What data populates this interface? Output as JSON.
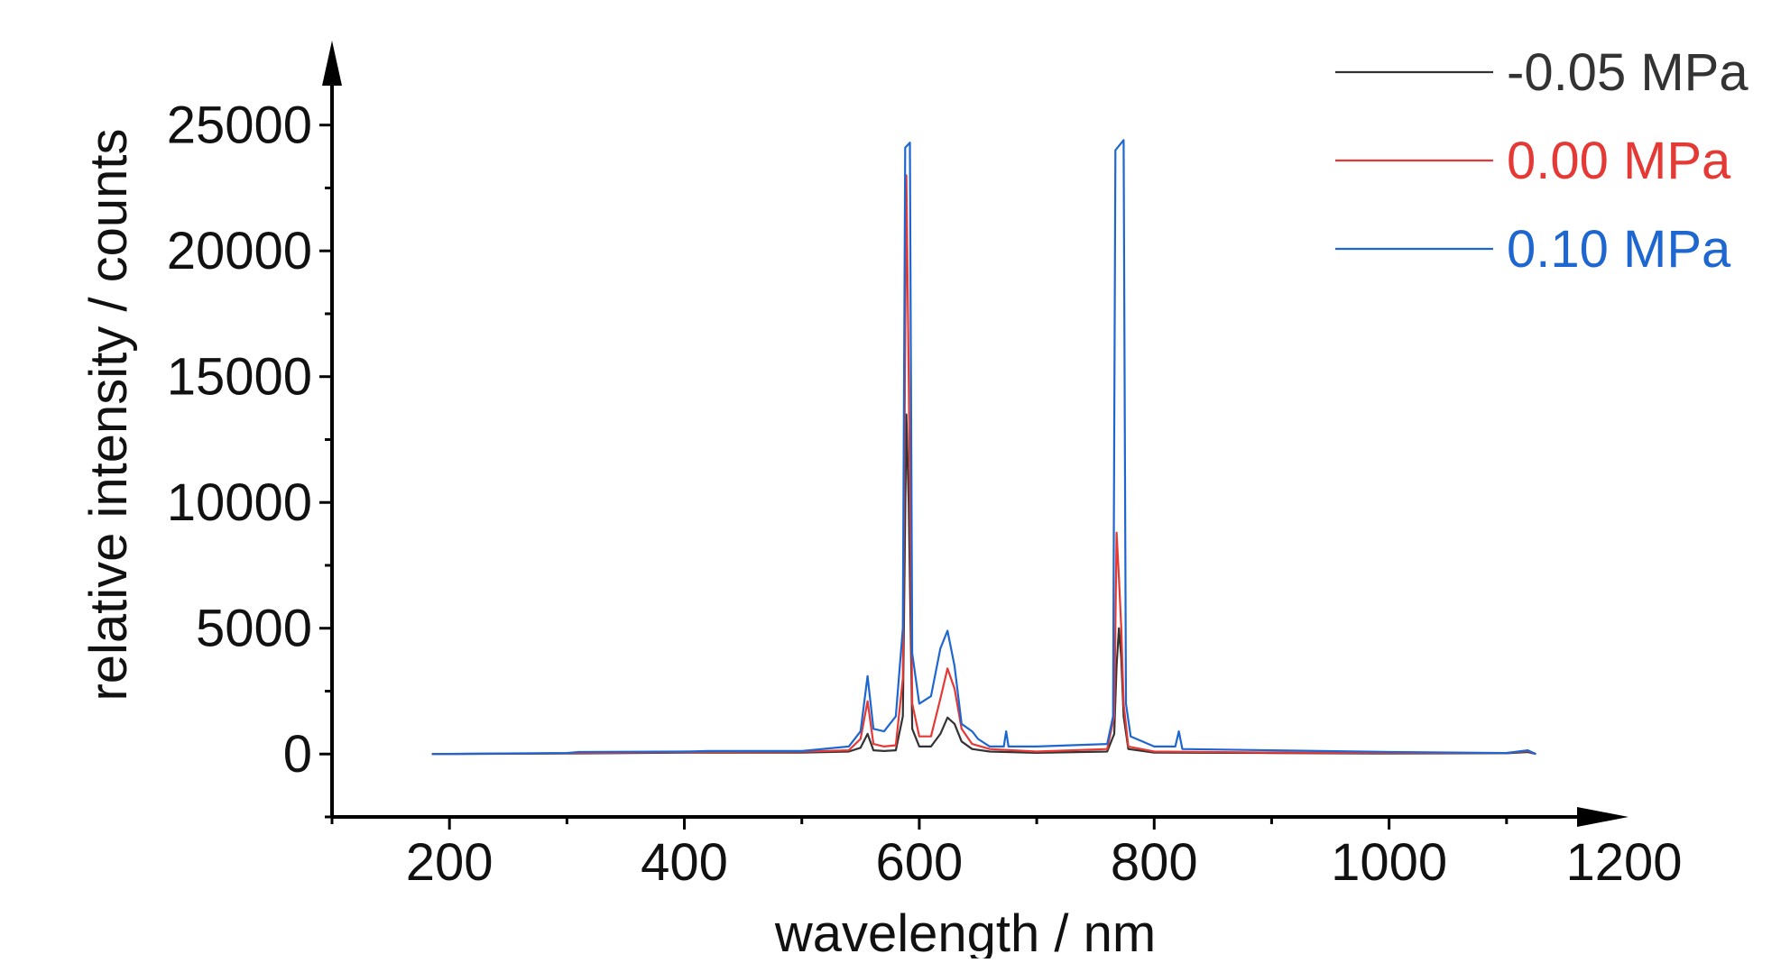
{
  "chart_data": {
    "type": "line",
    "title": "",
    "xlabel": "wavelength / nm",
    "ylabel": "relative intensity / counts",
    "xlim": [
      100,
      1200
    ],
    "ylim": [
      -2500,
      28000
    ],
    "x_ticks": [
      200,
      400,
      600,
      800,
      1000,
      1200
    ],
    "y_ticks": [
      0,
      5000,
      10000,
      15000,
      20000,
      25000
    ],
    "grid": false,
    "legend": {
      "position": "top-right"
    },
    "series": [
      {
        "name": "-0.05 MPa",
        "color": "#333333",
        "points": [
          [
            185,
            0
          ],
          [
            300,
            20
          ],
          [
            400,
            60
          ],
          [
            500,
            60
          ],
          [
            540,
            100
          ],
          [
            550,
            250
          ],
          [
            556,
            800
          ],
          [
            561,
            150
          ],
          [
            570,
            120
          ],
          [
            580,
            150
          ],
          [
            586,
            1500
          ],
          [
            589,
            13500
          ],
          [
            591,
            10000
          ],
          [
            594,
            1000
          ],
          [
            600,
            300
          ],
          [
            610,
            300
          ],
          [
            618,
            800
          ],
          [
            624,
            1450
          ],
          [
            630,
            1200
          ],
          [
            636,
            500
          ],
          [
            645,
            200
          ],
          [
            660,
            100
          ],
          [
            700,
            50
          ],
          [
            760,
            100
          ],
          [
            766,
            800
          ],
          [
            768,
            3500
          ],
          [
            770,
            5000
          ],
          [
            772,
            3800
          ],
          [
            774,
            1500
          ],
          [
            778,
            200
          ],
          [
            800,
            60
          ],
          [
            900,
            40
          ],
          [
            1000,
            20
          ],
          [
            1100,
            30
          ],
          [
            1118,
            80
          ],
          [
            1125,
            0
          ]
        ]
      },
      {
        "name": "0.00 MPa",
        "color": "#e53935",
        "points": [
          [
            185,
            0
          ],
          [
            300,
            30
          ],
          [
            400,
            80
          ],
          [
            500,
            90
          ],
          [
            540,
            150
          ],
          [
            550,
            600
          ],
          [
            556,
            2100
          ],
          [
            561,
            400
          ],
          [
            570,
            300
          ],
          [
            580,
            350
          ],
          [
            586,
            3000
          ],
          [
            589,
            23000
          ],
          [
            591,
            15000
          ],
          [
            594,
            2000
          ],
          [
            600,
            700
          ],
          [
            610,
            700
          ],
          [
            618,
            2200
          ],
          [
            624,
            3400
          ],
          [
            630,
            2600
          ],
          [
            636,
            1000
          ],
          [
            645,
            400
          ],
          [
            660,
            200
          ],
          [
            700,
            100
          ],
          [
            760,
            200
          ],
          [
            766,
            1500
          ],
          [
            768,
            8800
          ],
          [
            770,
            7000
          ],
          [
            772,
            5000
          ],
          [
            774,
            2000
          ],
          [
            778,
            300
          ],
          [
            800,
            100
          ],
          [
            900,
            60
          ],
          [
            1000,
            40
          ],
          [
            1100,
            40
          ],
          [
            1118,
            120
          ],
          [
            1125,
            0
          ]
        ]
      },
      {
        "name": "0.10 MPa",
        "color": "#1e66d0",
        "points": [
          [
            185,
            0
          ],
          [
            300,
            40
          ],
          [
            310,
            80
          ],
          [
            400,
            100
          ],
          [
            420,
            120
          ],
          [
            500,
            120
          ],
          [
            540,
            300
          ],
          [
            550,
            900
          ],
          [
            556,
            3100
          ],
          [
            561,
            1000
          ],
          [
            570,
            900
          ],
          [
            580,
            1500
          ],
          [
            586,
            5000
          ],
          [
            588,
            24100
          ],
          [
            592,
            24300
          ],
          [
            594,
            4000
          ],
          [
            600,
            2000
          ],
          [
            610,
            2300
          ],
          [
            618,
            4200
          ],
          [
            624,
            4900
          ],
          [
            630,
            3500
          ],
          [
            636,
            1200
          ],
          [
            645,
            900
          ],
          [
            650,
            600
          ],
          [
            660,
            300
          ],
          [
            672,
            300
          ],
          [
            674,
            900
          ],
          [
            676,
            300
          ],
          [
            700,
            300
          ],
          [
            760,
            400
          ],
          [
            765,
            1500
          ],
          [
            767,
            24000
          ],
          [
            774,
            24400
          ],
          [
            776,
            2000
          ],
          [
            780,
            700
          ],
          [
            800,
            300
          ],
          [
            818,
            300
          ],
          [
            821,
            900
          ],
          [
            824,
            200
          ],
          [
            900,
            150
          ],
          [
            1000,
            80
          ],
          [
            1100,
            40
          ],
          [
            1118,
            150
          ],
          [
            1125,
            0
          ]
        ]
      }
    ]
  }
}
